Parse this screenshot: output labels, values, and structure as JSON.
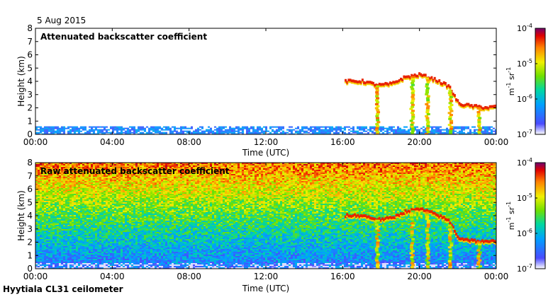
{
  "date_label": "5 Aug 2015",
  "footer_label": "Hyytiala CL31 ceilometer",
  "chart_data": [
    {
      "type": "heatmap",
      "title": "Attenuated backscatter coefficient",
      "xlabel": "Time (UTC)",
      "ylabel": "Height (km)",
      "x_ticks": [
        "00:00",
        "04:00",
        "08:00",
        "12:00",
        "16:00",
        "20:00",
        "00:00"
      ],
      "y_ticks": [
        "0",
        "1",
        "2",
        "3",
        "4",
        "5",
        "6",
        "7",
        "8"
      ],
      "xlim_hours": [
        0,
        24
      ],
      "ylim": [
        0,
        8
      ],
      "colorbar": {
        "ticks": [
          "10",
          "10",
          "10",
          "10"
        ],
        "exponents": [
          "-7",
          "-6",
          "-5",
          "-4"
        ],
        "values": [
          1e-07,
          1e-06,
          1e-05,
          0.0001
        ],
        "scale": "log",
        "unit_label": "m  sr",
        "unit_exponents": [
          "-1",
          "-1"
        ]
      },
      "features": {
        "boundary_layer_top_km": 0.5,
        "cloud_layer": [
          {
            "t": 16.1,
            "h": 4.0
          },
          {
            "t": 17.0,
            "h": 4.0
          },
          {
            "t": 17.8,
            "h": 3.7
          },
          {
            "t": 18.5,
            "h": 3.8
          },
          {
            "t": 19.2,
            "h": 4.3
          },
          {
            "t": 20.0,
            "h": 4.5
          },
          {
            "t": 20.8,
            "h": 4.1
          },
          {
            "t": 21.5,
            "h": 3.6
          },
          {
            "t": 22.0,
            "h": 2.3
          },
          {
            "t": 22.8,
            "h": 2.1
          },
          {
            "t": 23.5,
            "h": 2.0
          },
          {
            "t": 24.0,
            "h": 2.1
          }
        ],
        "precipitation_shafts_hours": [
          17.8,
          19.6,
          20.4,
          21.6,
          23.1
        ]
      }
    },
    {
      "type": "heatmap",
      "title": "Raw attenuated backscatter coefficient",
      "xlabel": "Time (UTC)",
      "ylabel": "Height (km)",
      "x_ticks": [
        "00:00",
        "04:00",
        "08:00",
        "12:00",
        "16:00",
        "20:00",
        "00:00"
      ],
      "y_ticks": [
        "0",
        "1",
        "2",
        "3",
        "4",
        "5",
        "6",
        "7",
        "8"
      ],
      "xlim_hours": [
        0,
        24
      ],
      "ylim": [
        0,
        8
      ],
      "colorbar": {
        "ticks": [
          "10",
          "10",
          "10",
          "10"
        ],
        "exponents": [
          "-7",
          "-6",
          "-5",
          "-4"
        ],
        "values": [
          1e-07,
          1e-06,
          1e-05,
          0.0001
        ],
        "scale": "log",
        "unit_label": "m  sr",
        "unit_exponents": [
          "-1",
          "-1"
        ]
      },
      "features": {
        "noise_increases_with_height": true
      }
    }
  ]
}
